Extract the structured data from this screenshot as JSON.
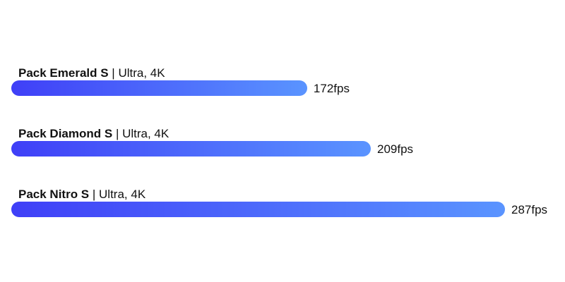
{
  "chart_data": {
    "type": "bar",
    "orientation": "horizontal",
    "unit": "fps",
    "categories": [
      "Pack Emerald S",
      "Pack Diamond S",
      "Pack Nitro S"
    ],
    "subtitles": [
      "Ultra, 4K",
      "Ultra, 4K",
      "Ultra, 4K"
    ],
    "values": [
      172,
      209,
      287
    ],
    "value_labels": [
      "172fps",
      "209fps",
      "287fps"
    ],
    "xlim": [
      0,
      287
    ],
    "grid": false,
    "colors": {
      "gradient_start": "#3f3ff7",
      "gradient_end": "#5a94ff"
    }
  }
}
